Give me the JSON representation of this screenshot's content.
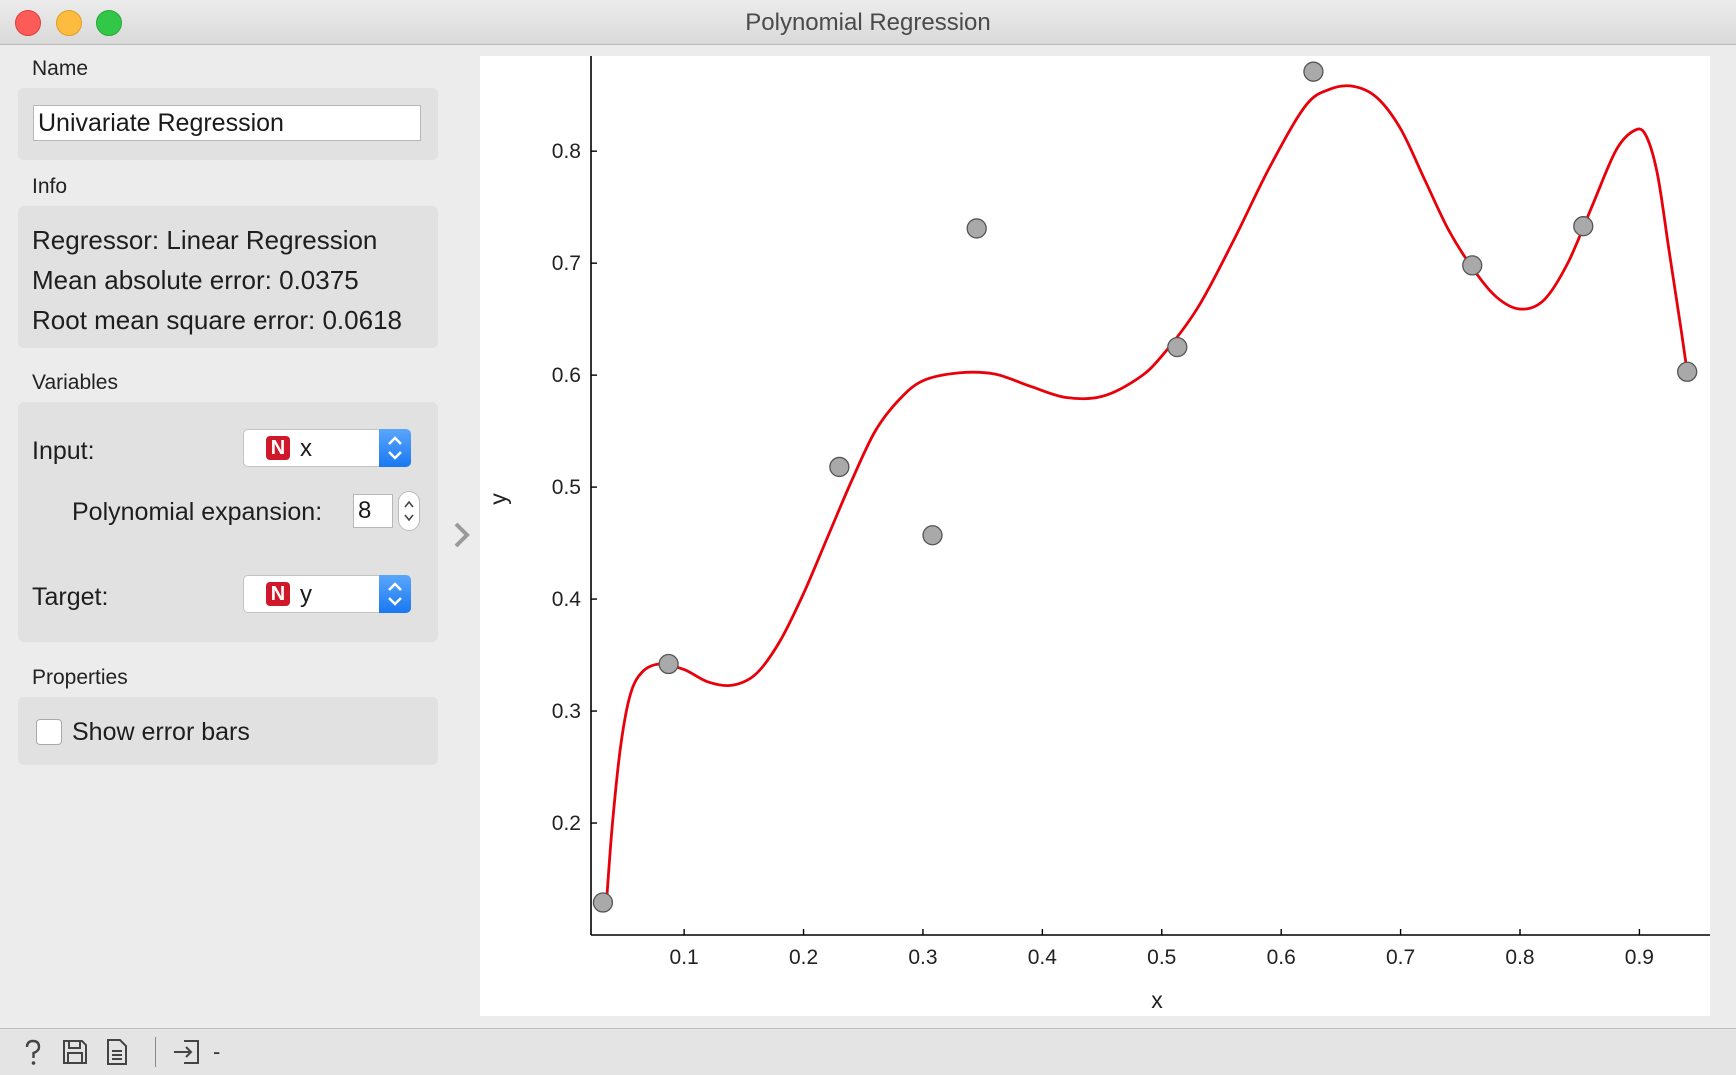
{
  "window": {
    "title": "Polynomial Regression"
  },
  "name_section": {
    "label": "Name",
    "value": "Univariate Regression"
  },
  "info_section": {
    "label": "Info",
    "lines": [
      "Regressor: Linear Regression",
      "Mean absolute error: 0.0375",
      "Root mean square error: 0.0618"
    ]
  },
  "variables_section": {
    "label": "Variables",
    "input_label": "Input:",
    "input_value": "x",
    "input_type_badge": "N",
    "poly_label": "Polynomial expansion:",
    "poly_value": "8",
    "target_label": "Target:",
    "target_value": "y",
    "target_type_badge": "N"
  },
  "properties_section": {
    "label": "Properties",
    "show_error_bars_label": "Show error bars",
    "show_error_bars_checked": false
  },
  "statusbar": {
    "icons": [
      "help-icon",
      "save-icon",
      "report-icon",
      "input-signal-icon"
    ],
    "input_summary": "-"
  },
  "colors": {
    "curve": "#e8000b",
    "points_fill": "#a9a9a9",
    "type_badge": "#d0182b",
    "combo_arrows": "#1a78f2"
  },
  "chart_data": {
    "type": "scatter",
    "xlabel": "x",
    "ylabel": "y",
    "xlim": [
      0.022,
      0.97
    ],
    "ylim": [
      0.1,
      0.885
    ],
    "x_ticks": [
      "0.1",
      "0.2",
      "0.3",
      "0.4",
      "0.5",
      "0.6",
      "0.7",
      "0.8",
      "0.9"
    ],
    "y_ticks": [
      "0.2",
      "0.3",
      "0.4",
      "0.5",
      "0.6",
      "0.7",
      "0.8"
    ],
    "grid": false,
    "points": [
      {
        "x": 0.032,
        "y": 0.129
      },
      {
        "x": 0.087,
        "y": 0.342
      },
      {
        "x": 0.23,
        "y": 0.518
      },
      {
        "x": 0.308,
        "y": 0.457
      },
      {
        "x": 0.345,
        "y": 0.731
      },
      {
        "x": 0.513,
        "y": 0.625
      },
      {
        "x": 0.627,
        "y": 0.871
      },
      {
        "x": 0.76,
        "y": 0.698
      },
      {
        "x": 0.853,
        "y": 0.733
      },
      {
        "x": 0.94,
        "y": 0.603
      }
    ],
    "fit_curve": {
      "name": "polynomial fit",
      "points": [
        [
          0.035,
          0.13
        ],
        [
          0.04,
          0.2
        ],
        [
          0.047,
          0.27
        ],
        [
          0.055,
          0.315
        ],
        [
          0.065,
          0.335
        ],
        [
          0.08,
          0.342
        ],
        [
          0.1,
          0.337
        ],
        [
          0.12,
          0.326
        ],
        [
          0.14,
          0.323
        ],
        [
          0.16,
          0.333
        ],
        [
          0.18,
          0.362
        ],
        [
          0.2,
          0.405
        ],
        [
          0.22,
          0.455
        ],
        [
          0.24,
          0.505
        ],
        [
          0.26,
          0.55
        ],
        [
          0.28,
          0.578
        ],
        [
          0.3,
          0.595
        ],
        [
          0.33,
          0.602
        ],
        [
          0.36,
          0.601
        ],
        [
          0.39,
          0.59
        ],
        [
          0.42,
          0.58
        ],
        [
          0.45,
          0.581
        ],
        [
          0.48,
          0.597
        ],
        [
          0.5,
          0.617
        ],
        [
          0.53,
          0.66
        ],
        [
          0.56,
          0.72
        ],
        [
          0.59,
          0.785
        ],
        [
          0.62,
          0.84
        ],
        [
          0.64,
          0.855
        ],
        [
          0.66,
          0.858
        ],
        [
          0.68,
          0.848
        ],
        [
          0.7,
          0.82
        ],
        [
          0.72,
          0.775
        ],
        [
          0.74,
          0.73
        ],
        [
          0.76,
          0.696
        ],
        [
          0.78,
          0.67
        ],
        [
          0.8,
          0.659
        ],
        [
          0.82,
          0.667
        ],
        [
          0.84,
          0.7
        ],
        [
          0.86,
          0.75
        ],
        [
          0.88,
          0.8
        ],
        [
          0.895,
          0.818
        ],
        [
          0.905,
          0.815
        ],
        [
          0.915,
          0.78
        ],
        [
          0.925,
          0.71
        ],
        [
          0.935,
          0.64
        ],
        [
          0.94,
          0.603
        ]
      ]
    }
  }
}
